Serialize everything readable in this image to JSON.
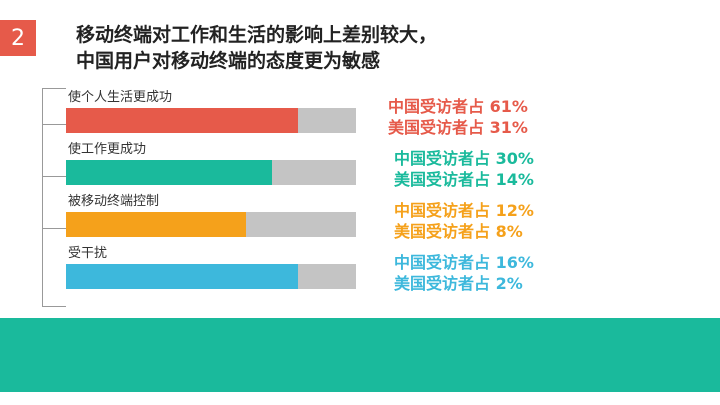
{
  "slide": {
    "number": "2",
    "title_line1": "移动终端对工作和生活的影响上差别较大，",
    "title_line2": "中国用户对移动终端的态度更为敏感"
  },
  "colors": {
    "badge": "#e65a4a",
    "footer": "#1aba9c",
    "track": "#c4c4c4"
  },
  "chart_data": {
    "type": "bar",
    "orientation": "horizontal",
    "categories": [
      "使个人生活更成功",
      "使工作更成功",
      "被移动终端控制",
      "受干扰"
    ],
    "series": [
      {
        "name": "中国受访者",
        "values": [
          61,
          30,
          12,
          16
        ]
      },
      {
        "name": "美国受访者",
        "values": [
          31,
          14,
          8,
          2
        ]
      }
    ],
    "bar_fill_fraction": [
      0.8,
      0.71,
      0.62,
      0.8
    ],
    "bar_colors": [
      "#e65a4a",
      "#1aba9c",
      "#f5a11b",
      "#3db8dc"
    ],
    "annotations": [
      {
        "china": "中国受访者占 61%",
        "usa": "美国受访者占 31%"
      },
      {
        "china": "中国受访者占 30%",
        "usa": "美国受访者占 14%"
      },
      {
        "china": "中国受访者占 12%",
        "usa": "美国受访者占 8%"
      },
      {
        "china": "中国受访者占 16%",
        "usa": "美国受访者占 2%"
      }
    ],
    "grid": false
  }
}
